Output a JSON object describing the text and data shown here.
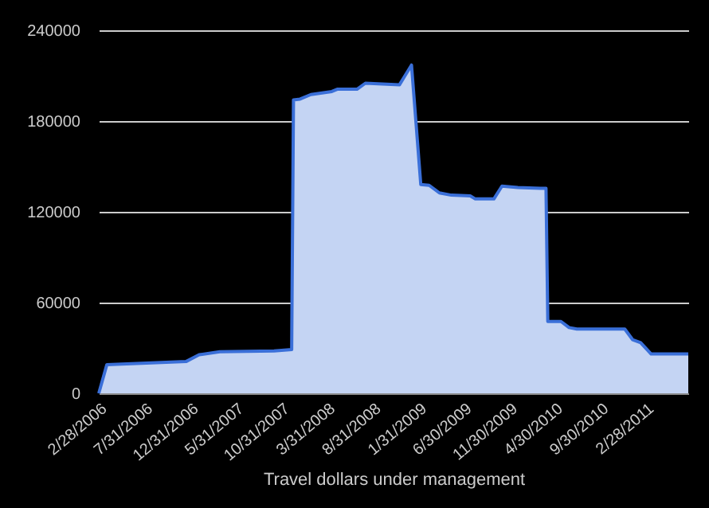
{
  "chart_data": {
    "type": "area",
    "xlabel": "Travel dollars under management",
    "x": [
      "2006-02-28",
      "2006-03-27",
      "2006-12-16",
      "2007-01-29",
      "2007-04-08",
      "2007-10-06",
      "2007-12-04",
      "2007-12-10",
      "2008-01-01",
      "2008-02-06",
      "2008-04-16",
      "2008-05-04",
      "2008-07-09",
      "2008-08-06",
      "2008-11-28",
      "2009-01-07",
      "2009-02-07",
      "2009-03-07",
      "2009-04-10",
      "2009-05-20",
      "2009-07-22",
      "2009-08-08",
      "2009-10-09",
      "2009-11-05",
      "2009-12-28",
      "2010-03-12",
      "2010-04-01",
      "2010-04-07",
      "2010-05-21",
      "2010-06-17",
      "2010-07-13",
      "2010-12-20",
      "2011-01-15",
      "2011-02-11",
      "2011-03-18",
      "2011-07-20"
    ],
    "series": [
      {
        "color": "#3a6fd8",
        "values": [
          0,
          19000,
          21000,
          25500,
          27500,
          28000,
          29000,
          194000,
          194500,
          197500,
          199500,
          201000,
          201000,
          205000,
          204000,
          217000,
          138000,
          137500,
          132500,
          131000,
          130500,
          128500,
          128500,
          137000,
          136000,
          135500,
          135500,
          47500,
          47500,
          43500,
          42500,
          42500,
          35500,
          33500,
          26000,
          26000
        ]
      }
    ],
    "xlim": [
      "2006-02-28",
      "2011-07-20"
    ],
    "xticks": [
      {
        "value": "2006-02-28",
        "label": "2/28/2006"
      },
      {
        "value": "2006-07-31",
        "label": "7/31/2006"
      },
      {
        "value": "2006-12-31",
        "label": "12/31/2006"
      },
      {
        "value": "2007-05-31",
        "label": "5/31/2007"
      },
      {
        "value": "2007-10-31",
        "label": "10/31/2007"
      },
      {
        "value": "2008-03-31",
        "label": "3/31/2008"
      },
      {
        "value": "2008-08-31",
        "label": "8/31/2008"
      },
      {
        "value": "2009-01-31",
        "label": "1/31/2009"
      },
      {
        "value": "2009-06-30",
        "label": "6/30/2009"
      },
      {
        "value": "2009-11-30",
        "label": "11/30/2009"
      },
      {
        "value": "2010-04-30",
        "label": "4/30/2010"
      },
      {
        "value": "2010-09-30",
        "label": "9/30/2010"
      },
      {
        "value": "2011-02-28",
        "label": "2/28/2011"
      }
    ],
    "ylim": [
      0,
      240000
    ],
    "yticks": [
      0,
      60000,
      120000,
      180000,
      240000
    ],
    "grid": "y"
  }
}
